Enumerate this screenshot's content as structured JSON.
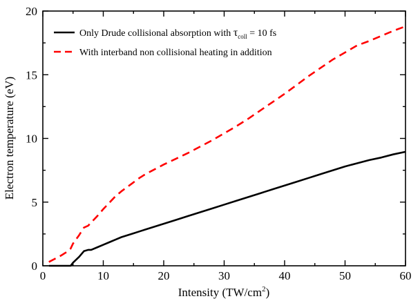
{
  "chart_data": {
    "type": "line",
    "xlabel": "Intensity (TW/cm",
    "xlabel_sup": "2",
    "xlabel_end": ")",
    "ylabel": "Electron temperature (eV)",
    "xlim": [
      0,
      60
    ],
    "ylim": [
      0,
      20
    ],
    "xticks": [
      "0",
      "10",
      "20",
      "30",
      "40",
      "50",
      "60"
    ],
    "yticks": [
      "0",
      "5",
      "10",
      "15",
      "20"
    ],
    "grid": false,
    "legend_position": "top-left",
    "series": [
      {
        "name": "Only Drude collisional absorption with τcoll = 10 fs",
        "legend_main": "Only Drude collisional absorption with ",
        "legend_tau": "τ",
        "legend_sub": "coll",
        "legend_tail": " = 10 fs",
        "color": "#000000",
        "style": "solid",
        "x": [
          1,
          2,
          3,
          4,
          4.6,
          5,
          6,
          6.8,
          7.5,
          8,
          9,
          10,
          11,
          12,
          13,
          14,
          15,
          16,
          17,
          18,
          19,
          20,
          22,
          24,
          26,
          28,
          30,
          32,
          34,
          36,
          38,
          40,
          42,
          44,
          46,
          48,
          50,
          52,
          54,
          56,
          58,
          60
        ],
        "y": [
          0,
          0,
          0,
          0,
          0,
          0.25,
          0.7,
          1.15,
          1.25,
          1.25,
          1.45,
          1.65,
          1.85,
          2.05,
          2.25,
          2.4,
          2.55,
          2.7,
          2.85,
          3.0,
          3.15,
          3.3,
          3.6,
          3.9,
          4.2,
          4.5,
          4.8,
          5.1,
          5.4,
          5.7,
          6.0,
          6.3,
          6.6,
          6.9,
          7.2,
          7.5,
          7.8,
          8.05,
          8.3,
          8.5,
          8.75,
          8.95
        ]
      },
      {
        "name": "With interband non collisional heating in addition",
        "legend_main": "With interband non collisional heating in addition",
        "color": "#ff0000",
        "style": "dashed",
        "x": [
          1,
          2,
          3,
          4,
          4.6,
          5,
          6,
          6.8,
          7.5,
          8,
          9,
          10,
          11,
          12,
          13,
          14,
          15,
          16,
          17,
          18,
          19,
          20,
          22,
          24,
          26,
          28,
          30,
          32,
          34,
          36,
          38,
          40,
          42,
          44,
          46,
          48,
          50,
          52,
          54,
          56,
          58,
          60
        ],
        "y": [
          0.3,
          0.55,
          0.8,
          1.1,
          1.35,
          1.75,
          2.4,
          3.0,
          3.15,
          3.4,
          3.9,
          4.45,
          4.95,
          5.45,
          5.85,
          6.2,
          6.55,
          6.9,
          7.2,
          7.45,
          7.7,
          7.95,
          8.4,
          8.85,
          9.35,
          9.85,
          10.4,
          10.95,
          11.55,
          12.2,
          12.85,
          13.5,
          14.2,
          14.9,
          15.55,
          16.2,
          16.75,
          17.3,
          17.65,
          18.05,
          18.45,
          18.8
        ]
      }
    ]
  }
}
